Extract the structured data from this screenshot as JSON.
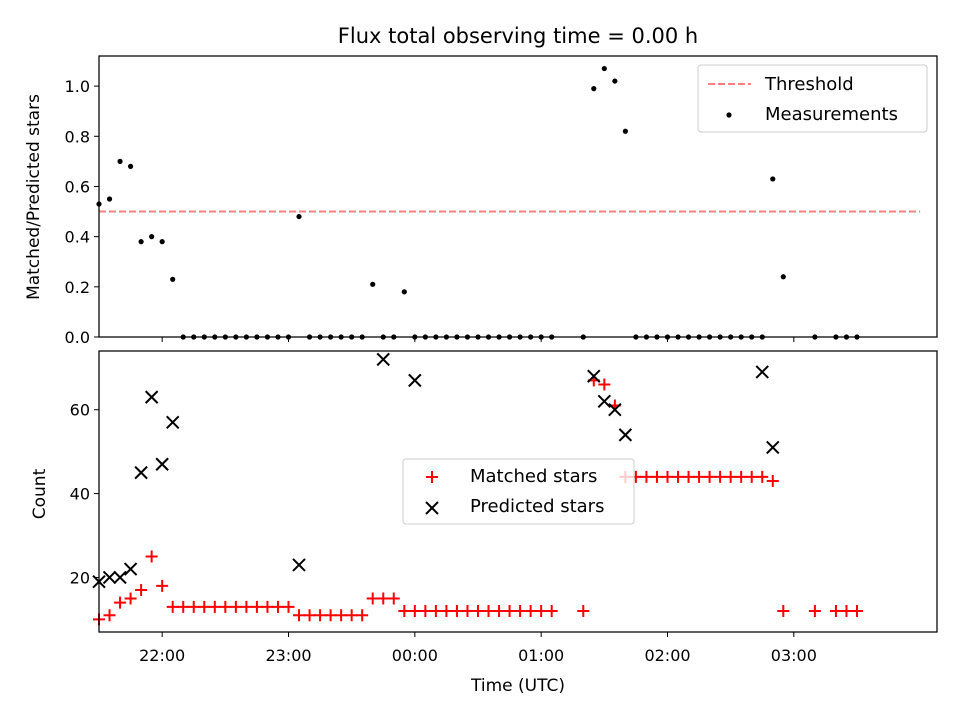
{
  "chart_data": [
    {
      "type": "scatter",
      "title": "Flux total observing time = 0.00 h",
      "xlabel": "",
      "ylabel": "Matched/Predicted stars",
      "ylim": [
        0,
        1.12
      ],
      "yticks": [
        0.0,
        0.2,
        0.4,
        0.6,
        0.8,
        1.0
      ],
      "ytick_labels": [
        "0.0",
        "0.2",
        "0.4",
        "0.6",
        "0.8",
        "1.0"
      ],
      "xlim": [
        "21:30",
        "04:08"
      ],
      "xticks": [
        "22:00",
        "23:00",
        "00:00",
        "01:00",
        "02:00",
        "03:00"
      ],
      "xtick_labels_visible": false,
      "legend_position": "top-right",
      "grid": false,
      "series": [
        {
          "name": "Threshold",
          "kind": "line",
          "style": "dashed",
          "color": "#ff7f7f",
          "x": [
            "21:30",
            "04:00"
          ],
          "y": [
            0.5,
            0.5
          ]
        },
        {
          "name": "Measurements",
          "kind": "scatter",
          "color": "#000000",
          "x": [
            "21:30",
            "21:35",
            "21:40",
            "21:45",
            "21:50",
            "21:55",
            "22:00",
            "22:05",
            "22:10",
            "22:15",
            "22:20",
            "22:25",
            "22:30",
            "22:35",
            "22:40",
            "22:45",
            "22:50",
            "22:55",
            "23:00",
            "23:05",
            "23:10",
            "23:15",
            "23:20",
            "23:25",
            "23:30",
            "23:35",
            "23:40",
            "23:45",
            "23:50",
            "23:55",
            "00:00",
            "00:05",
            "00:10",
            "00:15",
            "00:20",
            "00:25",
            "00:30",
            "00:35",
            "00:40",
            "00:45",
            "00:50",
            "00:55",
            "01:00",
            "01:05",
            "01:20",
            "01:25",
            "01:30",
            "01:35",
            "01:40",
            "01:45",
            "01:50",
            "01:55",
            "02:00",
            "02:05",
            "02:10",
            "02:15",
            "02:20",
            "02:25",
            "02:30",
            "02:35",
            "02:40",
            "02:45",
            "02:50",
            "02:55",
            "03:10",
            "03:20",
            "03:25",
            "03:30"
          ],
          "y": [
            0.53,
            0.55,
            0.7,
            0.68,
            0.38,
            0.4,
            0.38,
            0.23,
            0.0,
            0.0,
            0.0,
            0.0,
            0.0,
            0.0,
            0.0,
            0.0,
            0.0,
            0.0,
            0.0,
            0.48,
            0.0,
            0.0,
            0.0,
            0.0,
            0.0,
            0.0,
            0.21,
            0.0,
            0.0,
            0.18,
            0.0,
            0.0,
            0.0,
            0.0,
            0.0,
            0.0,
            0.0,
            0.0,
            0.0,
            0.0,
            0.0,
            0.0,
            0.0,
            0.0,
            0.0,
            0.99,
            1.07,
            1.02,
            0.82,
            0.0,
            0.0,
            0.0,
            0.0,
            0.0,
            0.0,
            0.0,
            0.0,
            0.0,
            0.0,
            0.0,
            0.0,
            0.0,
            0.63,
            0.24,
            0.0,
            0.0,
            0.0,
            0.0
          ]
        }
      ]
    },
    {
      "type": "scatter",
      "title": "",
      "xlabel": "Time (UTC)",
      "ylabel": "Count",
      "ylim": [
        7,
        74
      ],
      "yticks": [
        20,
        40,
        60
      ],
      "ytick_labels": [
        "20",
        "40",
        "60"
      ],
      "xlim": [
        "21:30",
        "04:08"
      ],
      "xticks": [
        "22:00",
        "23:00",
        "00:00",
        "01:00",
        "02:00",
        "03:00"
      ],
      "xtick_labels": [
        "22:00",
        "23:00",
        "00:00",
        "01:00",
        "02:00",
        "03:00"
      ],
      "legend_position": "center",
      "grid": false,
      "series": [
        {
          "name": "Matched stars",
          "kind": "scatter",
          "marker": "+",
          "color": "#ff0000",
          "x": [
            "21:30",
            "21:35",
            "21:40",
            "21:45",
            "21:50",
            "21:55",
            "22:00",
            "22:05",
            "22:10",
            "22:15",
            "22:20",
            "22:25",
            "22:30",
            "22:35",
            "22:40",
            "22:45",
            "22:50",
            "22:55",
            "23:00",
            "23:05",
            "23:10",
            "23:15",
            "23:20",
            "23:25",
            "23:30",
            "23:35",
            "23:40",
            "23:45",
            "23:50",
            "23:55",
            "00:00",
            "00:05",
            "00:10",
            "00:15",
            "00:20",
            "00:25",
            "00:30",
            "00:35",
            "00:40",
            "00:45",
            "00:50",
            "00:55",
            "01:00",
            "01:05",
            "01:20",
            "01:25",
            "01:30",
            "01:35",
            "01:40",
            "01:45",
            "01:50",
            "01:55",
            "02:00",
            "02:05",
            "02:10",
            "02:15",
            "02:20",
            "02:25",
            "02:30",
            "02:35",
            "02:40",
            "02:45",
            "02:50",
            "02:55",
            "03:10",
            "03:20",
            "03:25",
            "03:30"
          ],
          "y": [
            10,
            11,
            14,
            15,
            17,
            25,
            18,
            13,
            13,
            13,
            13,
            13,
            13,
            13,
            13,
            13,
            13,
            13,
            13,
            11,
            11,
            11,
            11,
            11,
            11,
            11,
            15,
            15,
            15,
            12,
            12,
            12,
            12,
            12,
            12,
            12,
            12,
            12,
            12,
            12,
            12,
            12,
            12,
            12,
            12,
            67,
            66,
            61,
            44,
            44,
            44,
            44,
            44,
            44,
            44,
            44,
            44,
            44,
            44,
            44,
            44,
            44,
            43,
            12,
            12,
            12,
            12,
            12
          ]
        },
        {
          "name": "Predicted stars",
          "kind": "scatter",
          "marker": "x",
          "color": "#000000",
          "x": [
            "21:30",
            "21:35",
            "21:40",
            "21:45",
            "21:50",
            "21:55",
            "22:00",
            "22:05",
            "23:05",
            "23:45",
            "24:00",
            "25:25",
            "25:30",
            "25:35",
            "25:40",
            "26:45",
            "26:50"
          ],
          "y": [
            19,
            20,
            20,
            22,
            45,
            63,
            47,
            57,
            23,
            72,
            67,
            68,
            62,
            60,
            54,
            69,
            51
          ]
        }
      ]
    }
  ]
}
